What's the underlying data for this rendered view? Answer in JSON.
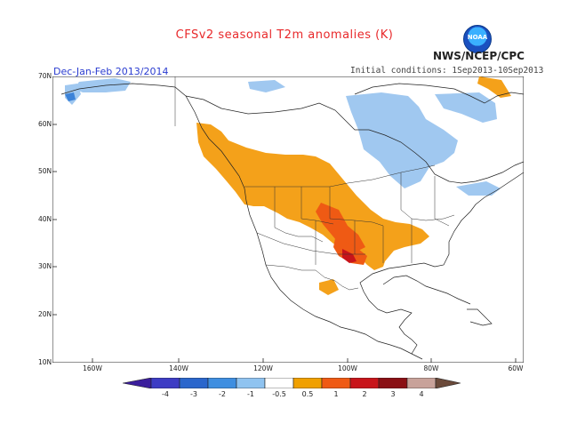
{
  "title": "CFSv2 seasonal T2m anomalies (K)",
  "season": "Dec-Jan-Feb 2013/2014",
  "initial_conditions": "Initial conditions: 1Sep2013-10Sep2013",
  "agency": "NWS/NCEP/CPC",
  "logo_text": "NOAA",
  "lat_labels": [
    "70N",
    "60N",
    "50N",
    "40N",
    "30N",
    "20N",
    "10N"
  ],
  "lon_labels": [
    "160W",
    "140W",
    "120W",
    "100W",
    "80W",
    "60W"
  ],
  "colorbar": {
    "labels": [
      "-4",
      "-3",
      "-2",
      "-1",
      "-0.5",
      "0.5",
      "1",
      "2",
      "3",
      "4"
    ],
    "colors": [
      "#3b1e9c",
      "#3d3cc4",
      "#2a66cc",
      "#3e8ee0",
      "#8fc3f0",
      "#ffffff",
      "#f0a000",
      "#ef5a14",
      "#c8141a",
      "#8a0f14",
      "#c8a29a",
      "#6b4a3a"
    ]
  },
  "map_colors": {
    "cold_light": "#a0c8f0",
    "cold": "#3b82d8",
    "warm": "#f4a11a",
    "warmer": "#ef5a14",
    "hot": "#c8141a",
    "coast": "#222222",
    "border": "#333333"
  }
}
